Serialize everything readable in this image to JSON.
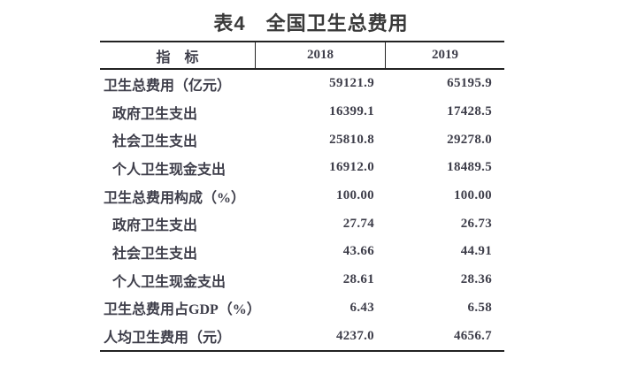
{
  "title": "表4　全国卫生总费用",
  "table": {
    "columns": [
      "指　标",
      "2018",
      "2019"
    ],
    "rows": [
      {
        "label": "卫生总费用（亿元）",
        "indent": false,
        "v2018": "59121.9",
        "v2019": "65195.9"
      },
      {
        "label": "政府卫生支出",
        "indent": true,
        "v2018": "16399.1",
        "v2019": "17428.5"
      },
      {
        "label": "社会卫生支出",
        "indent": true,
        "v2018": "25810.8",
        "v2019": "29278.0"
      },
      {
        "label": "个人卫生现金支出",
        "indent": true,
        "v2018": "16912.0",
        "v2019": "18489.5"
      },
      {
        "label": "卫生总费用构成（%）",
        "indent": false,
        "v2018": "100.00",
        "v2019": "100.00"
      },
      {
        "label": "政府卫生支出",
        "indent": true,
        "v2018": "27.74",
        "v2019": "26.73"
      },
      {
        "label": "社会卫生支出",
        "indent": true,
        "v2018": "43.66",
        "v2019": "44.91"
      },
      {
        "label": "个人卫生现金支出",
        "indent": true,
        "v2018": "28.61",
        "v2019": "28.36"
      },
      {
        "label": "卫生总费用占GDP（%）",
        "indent": false,
        "v2018": "6.43",
        "v2019": "6.58"
      },
      {
        "label": "人均卫生费用（元）",
        "indent": false,
        "v2018": "4237.0",
        "v2019": "4656.7"
      }
    ]
  },
  "colors": {
    "line": "#222222",
    "body_text": "#3e3e4a",
    "title_text": "#3a3a3a",
    "background": "#ffffff"
  }
}
